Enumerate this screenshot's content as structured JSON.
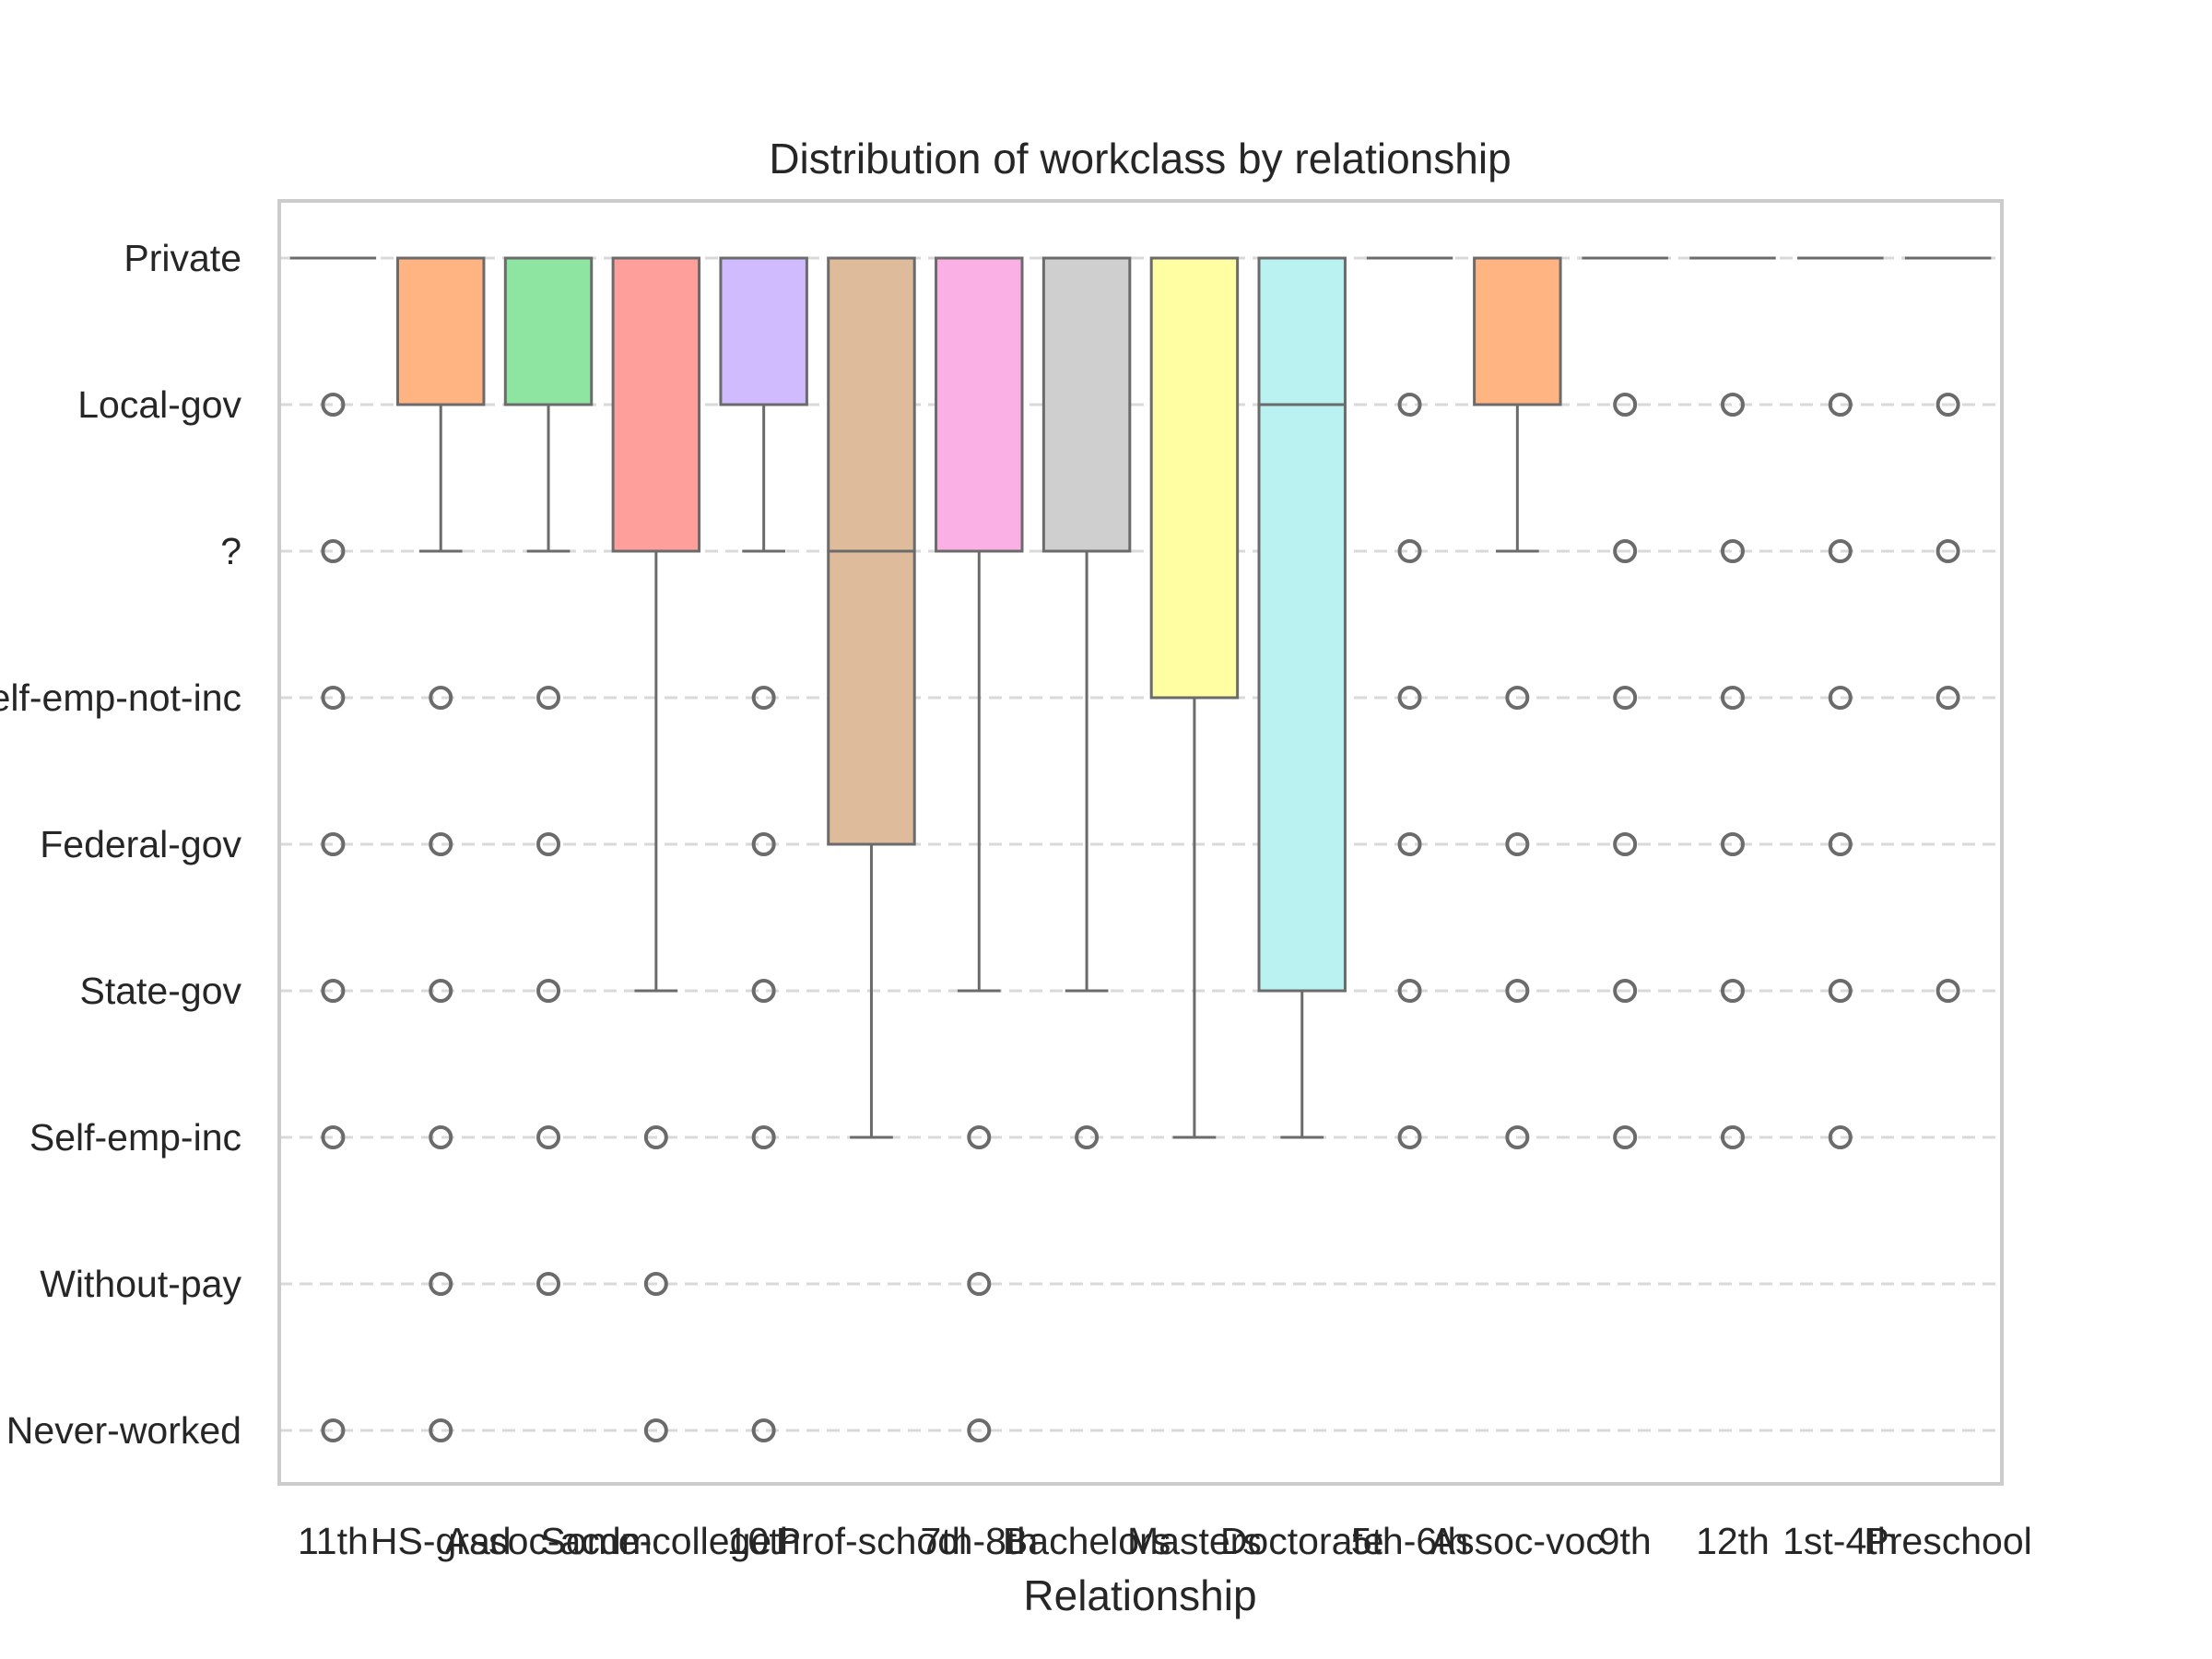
{
  "chart_data": {
    "type": "box",
    "title": "Distribution of workclass by relationship",
    "xlabel": "Relationship",
    "ylabel": "",
    "categories": [
      "11th",
      "HS-grad",
      "Assoc-acdm",
      "Some-college",
      "10th",
      "Prof-school",
      "7th-8th",
      "Bachelors",
      "Masters",
      "Doctorate",
      "5th-6th",
      "Assoc-voc",
      "9th",
      "12th",
      "1st-4th",
      "Preschool"
    ],
    "y_levels": [
      "Private",
      "Local-gov",
      "?",
      "Self-emp-not-inc",
      "Federal-gov",
      "State-gov",
      "Self-emp-inc",
      "Without-pay",
      "Never-worked"
    ],
    "grid": "horizontal dashed",
    "boxes": [
      {
        "category": "11th",
        "q1": 0,
        "median": 0,
        "q3": 0,
        "whisker_low": 0,
        "whisker_high": 0,
        "color": "#a1c9f4",
        "outliers": [
          1,
          2,
          3,
          4,
          5,
          6,
          8
        ]
      },
      {
        "category": "HS-grad",
        "q1": 0,
        "median": 0,
        "q3": 1,
        "whisker_low": 0,
        "whisker_high": 2,
        "color": "#ffb482",
        "outliers": [
          3,
          4,
          5,
          6,
          7,
          8
        ]
      },
      {
        "category": "Assoc-acdm",
        "q1": 0,
        "median": 0,
        "q3": 1,
        "whisker_low": 0,
        "whisker_high": 2,
        "color": "#8de5a1",
        "outliers": [
          3,
          4,
          5,
          6,
          7
        ]
      },
      {
        "category": "Some-college",
        "q1": 0,
        "median": 0,
        "q3": 2,
        "whisker_low": 0,
        "whisker_high": 5,
        "color": "#ff9f9b",
        "outliers": [
          6,
          7,
          8
        ]
      },
      {
        "category": "10th",
        "q1": 0,
        "median": 0,
        "q3": 1,
        "whisker_low": 0,
        "whisker_high": 2,
        "color": "#d0bbff",
        "outliers": [
          3,
          4,
          5,
          6,
          8
        ]
      },
      {
        "category": "Prof-school",
        "q1": 0,
        "median": 2,
        "q3": 4,
        "whisker_low": 0,
        "whisker_high": 6,
        "color": "#debb9b",
        "outliers": []
      },
      {
        "category": "7th-8th",
        "q1": 0,
        "median": 0,
        "q3": 2,
        "whisker_low": 0,
        "whisker_high": 5,
        "color": "#fab0e4",
        "outliers": [
          6,
          7,
          8
        ]
      },
      {
        "category": "Bachelors",
        "q1": 0,
        "median": 0,
        "q3": 2,
        "whisker_low": 0,
        "whisker_high": 5,
        "color": "#cfcfcf",
        "outliers": [
          6
        ]
      },
      {
        "category": "Masters",
        "q1": 0,
        "median": 0,
        "q3": 3,
        "whisker_low": 0,
        "whisker_high": 6,
        "color": "#fffea3",
        "outliers": []
      },
      {
        "category": "Doctorate",
        "q1": 0,
        "median": 1,
        "q3": 5,
        "whisker_low": 0,
        "whisker_high": 6,
        "color": "#b9f2f0",
        "outliers": []
      },
      {
        "category": "5th-6th",
        "q1": 0,
        "median": 0,
        "q3": 0,
        "whisker_low": 0,
        "whisker_high": 0,
        "color": "#a1c9f4",
        "outliers": [
          1,
          2,
          3,
          4,
          5,
          6
        ]
      },
      {
        "category": "Assoc-voc",
        "q1": 0,
        "median": 0,
        "q3": 1,
        "whisker_low": 0,
        "whisker_high": 2,
        "color": "#ffb482",
        "outliers": [
          3,
          4,
          5,
          6
        ]
      },
      {
        "category": "9th",
        "q1": 0,
        "median": 0,
        "q3": 0,
        "whisker_low": 0,
        "whisker_high": 0,
        "color": "#8de5a1",
        "outliers": [
          1,
          2,
          3,
          4,
          5,
          6
        ]
      },
      {
        "category": "12th",
        "q1": 0,
        "median": 0,
        "q3": 0,
        "whisker_low": 0,
        "whisker_high": 0,
        "color": "#ff9f9b",
        "outliers": [
          1,
          2,
          3,
          4,
          5,
          6
        ]
      },
      {
        "category": "1st-4th",
        "q1": 0,
        "median": 0,
        "q3": 0,
        "whisker_low": 0,
        "whisker_high": 0,
        "color": "#d0bbff",
        "outliers": [
          1,
          2,
          3,
          4,
          5,
          6
        ]
      },
      {
        "category": "Preschool",
        "q1": 0,
        "median": 0,
        "q3": 0,
        "whisker_low": 0,
        "whisker_high": 0,
        "color": "#debb9b",
        "outliers": [
          1,
          2,
          3,
          5
        ]
      }
    ]
  }
}
